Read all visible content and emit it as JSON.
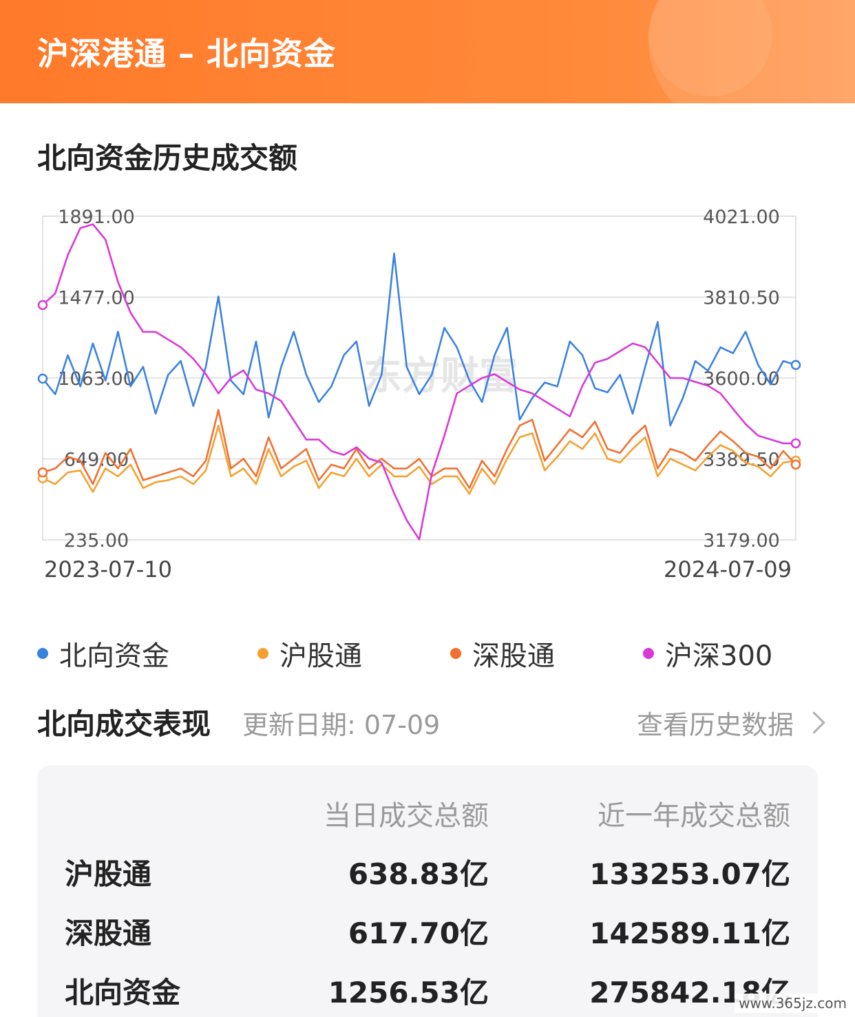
{
  "header": {
    "title": "沪深港通 – 北向资金"
  },
  "section": {
    "title": "北向资金历史成交额"
  },
  "chart_data": {
    "type": "line",
    "title": "",
    "x_start_label": "2023-07-10",
    "x_end_label": "2024-07-09",
    "left_axis": {
      "ticks": [
        "1891.00",
        "1477.00",
        "1063.00",
        "649.00",
        "235.00"
      ],
      "ylim": [
        235,
        1891
      ]
    },
    "right_axis": {
      "ticks": [
        "4021.00",
        "3810.50",
        "3600.00",
        "3389.50",
        "3179.00"
      ],
      "ylim": [
        3179,
        4021
      ]
    },
    "grid": true,
    "legend_position": "bottom",
    "watermark": "东方财富",
    "series": [
      {
        "name": "北向资金",
        "axis": "left",
        "color": "#3a82e0",
        "values": [
          1060,
          980,
          1180,
          1020,
          1240,
          1050,
          1300,
          1020,
          1120,
          880,
          1080,
          1150,
          920,
          1120,
          1480,
          1050,
          980,
          1250,
          860,
          1120,
          1300,
          1080,
          940,
          1020,
          1180,
          1250,
          920,
          1080,
          1700,
          1120,
          980,
          1080,
          1320,
          1220,
          1050,
          940,
          1180,
          1320,
          850,
          960,
          1040,
          1020,
          1250,
          1180,
          1010,
          990,
          1080,
          880,
          1120,
          1350,
          820,
          960,
          1150,
          1100,
          1220,
          1190,
          1300,
          1130,
          1030,
          1150,
          1130
        ]
      },
      {
        "name": "沪股通",
        "axis": "left",
        "color": "#f5a030",
        "values": [
          550,
          520,
          580,
          590,
          480,
          600,
          560,
          620,
          500,
          530,
          540,
          560,
          520,
          590,
          820,
          560,
          600,
          520,
          700,
          560,
          610,
          640,
          500,
          580,
          560,
          650,
          560,
          620,
          560,
          560,
          610,
          520,
          560,
          560,
          470,
          600,
          520,
          650,
          760,
          780,
          590,
          660,
          740,
          700,
          780,
          650,
          630,
          700,
          760,
          560,
          650,
          620,
          590,
          660,
          720,
          690,
          630,
          610,
          560,
          630,
          640
        ]
      },
      {
        "name": "深股通",
        "axis": "left",
        "color": "#f07030",
        "values": [
          580,
          600,
          660,
          640,
          520,
          680,
          600,
          700,
          540,
          560,
          580,
          600,
          560,
          640,
          900,
          600,
          650,
          560,
          760,
          600,
          650,
          700,
          540,
          620,
          600,
          700,
          600,
          650,
          600,
          600,
          650,
          560,
          600,
          600,
          500,
          640,
          560,
          700,
          820,
          850,
          640,
          720,
          800,
          760,
          840,
          700,
          680,
          760,
          820,
          600,
          700,
          680,
          640,
          720,
          790,
          740,
          680,
          660,
          600,
          690,
          620
        ]
      },
      {
        "name": "沪深300",
        "axis": "right",
        "color": "#d838d8",
        "values": [
          3790,
          3820,
          3920,
          3990,
          4000,
          3960,
          3850,
          3770,
          3720,
          3720,
          3700,
          3680,
          3650,
          3610,
          3560,
          3600,
          3620,
          3570,
          3560,
          3540,
          3490,
          3440,
          3440,
          3410,
          3400,
          3420,
          3390,
          3380,
          3300,
          3230,
          3180,
          3350,
          3450,
          3560,
          3580,
          3600,
          3610,
          3590,
          3570,
          3560,
          3540,
          3520,
          3500,
          3580,
          3640,
          3650,
          3670,
          3690,
          3680,
          3640,
          3600,
          3600,
          3590,
          3580,
          3560,
          3520,
          3480,
          3450,
          3440,
          3430,
          3430
        ]
      }
    ]
  },
  "legend": [
    {
      "label": "北向资金",
      "color": "#3a82e0"
    },
    {
      "label": "沪股通",
      "color": "#f5a030"
    },
    {
      "label": "深股通",
      "color": "#f07030"
    },
    {
      "label": "沪深300",
      "color": "#d838d8"
    }
  ],
  "performance": {
    "title": "北向成交表现",
    "updated": "更新日期: 07-09",
    "history_link": "查看历史数据",
    "columns": [
      "当日成交总额",
      "近一年成交总额"
    ],
    "rows": [
      {
        "label": "沪股通",
        "today": "638.83亿",
        "year": "133253.07亿"
      },
      {
        "label": "深股通",
        "today": "617.70亿",
        "year": "142589.11亿"
      },
      {
        "label": "北向资金",
        "today": "1256.53亿",
        "year": "275842.18亿"
      }
    ]
  },
  "site_watermark": "www.365jz.com"
}
